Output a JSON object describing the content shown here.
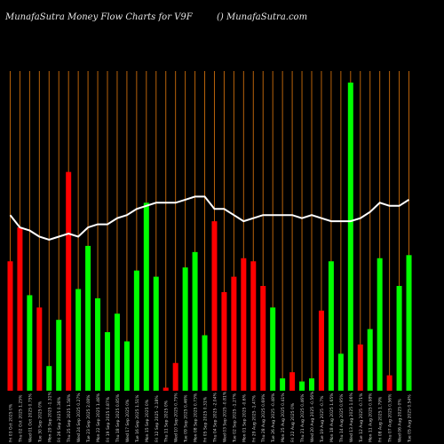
{
  "header": {
    "title_left": "MunafaSutra  Money Flow  Charts for V9F",
    "title_right": "() MunafaSutra.com"
  },
  "colors": {
    "background": "#000000",
    "grid": "#b8620a",
    "up": "#00ff00",
    "down": "#ff0000",
    "line": "#ffffff",
    "label": "#d0d0d0"
  },
  "chart_data": {
    "type": "bar",
    "title": "MunafaSutra  Money Flow  Charts for V9F",
    "xlabel": "",
    "ylabel": "",
    "grid": true,
    "ylim": [
      0,
      100
    ],
    "categories": [
      "Fri 03 Oct 2025 0%",
      "Thu 02 Oct 2025 1.25%",
      "Wed 01 Oct 2025 0.75%",
      "Tue 30 Sep 2025 0%",
      "Mon 29 Sep 2025 -1.31%",
      "Fri 26 Sep 2025 0.38%",
      "Thu 25 Sep 2025 1.58%",
      "Wed 24 Sep 2025 0.27%",
      "Tue 23 Sep 2025 2.08%",
      "Mon 22 Sep 2025 1.48%",
      "Fri 19 Sep 2025 0.87%",
      "Thu 18 Sep 2025 0.85%",
      "Wed 17 Sep 2025 0%",
      "Tue 16 Sep 2025 1.51%",
      "Mon 15 Sep 2025 0%",
      "Fri 12 Sep 2025 -2.18%",
      "Thu 11 Sep 2025 0%",
      "Wed 10 Sep 2025 0.75%",
      "Tue 09 Sep 2025 0.46%",
      "Mon 08 Sep 2025 0.73%",
      "Fri 05 Sep 2025 0.31%",
      "Thu 04 Sep 2025 -2.04%",
      "Wed 03 Sep 2025 -0.81%",
      "Tue 02 Sep 2025 -1.27%",
      "Mon 01 Sep 2025 -0.6%",
      "Fri 29 Aug 2025 -1.47%",
      "Thu 28 Aug 2025 0.69%",
      "Tue 26 Aug 2025 -0.48%",
      "Mon 25 Aug 2025 0.41%",
      "Fri 22 Aug 2025 0%",
      "Thu 21 Aug 2025 0.46%",
      "Wed 20 Aug 2025 -0.56%",
      "Tue 19 Aug 2025 -0.7%",
      "Mon 18 Aug 2025 1.65%",
      "Thu 14 Aug 2025 0.95%",
      "Wed 13 Aug 2025 1.06%",
      "Tue 12 Aug 2025 -0.71%",
      "Mon 11 Aug 2025 0.98%",
      "Fri 08 Aug 2025 1.79%",
      "Thu 07 Aug 2025 0.56%",
      "Wed 06 Aug 2025 0%",
      "Tue 05 Aug 2025 0.54%"
    ],
    "series": [
      {
        "type": "bar",
        "values": [
          42,
          53,
          31,
          27,
          8,
          23,
          71,
          33,
          47,
          30,
          19,
          25,
          16,
          39,
          61,
          37,
          1,
          9,
          40,
          45,
          18,
          55,
          32,
          37,
          43,
          42,
          34,
          27,
          4,
          6,
          3,
          4,
          26,
          42,
          12,
          100,
          15,
          20,
          43,
          5,
          34,
          44
        ],
        "colors": [
          "red",
          "red",
          "green",
          "red",
          "green",
          "green",
          "red",
          "green",
          "green",
          "green",
          "green",
          "green",
          "green",
          "green",
          "green",
          "green",
          "red",
          "red",
          "green",
          "green",
          "green",
          "red",
          "red",
          "red",
          "red",
          "red",
          "red",
          "green",
          "green",
          "red",
          "green",
          "green",
          "red",
          "green",
          "green",
          "green",
          "red",
          "green",
          "green",
          "red",
          "green",
          "green"
        ]
      },
      {
        "type": "line",
        "values": [
          57,
          53,
          52,
          50,
          49,
          50,
          51,
          50,
          53,
          54,
          54,
          56,
          57,
          59,
          60,
          61,
          61,
          61,
          62,
          63,
          63,
          59,
          59,
          57,
          55,
          56,
          57,
          57,
          57,
          57,
          56,
          57,
          56,
          55,
          55,
          55,
          56,
          58,
          61,
          60,
          60,
          62
        ]
      }
    ]
  }
}
